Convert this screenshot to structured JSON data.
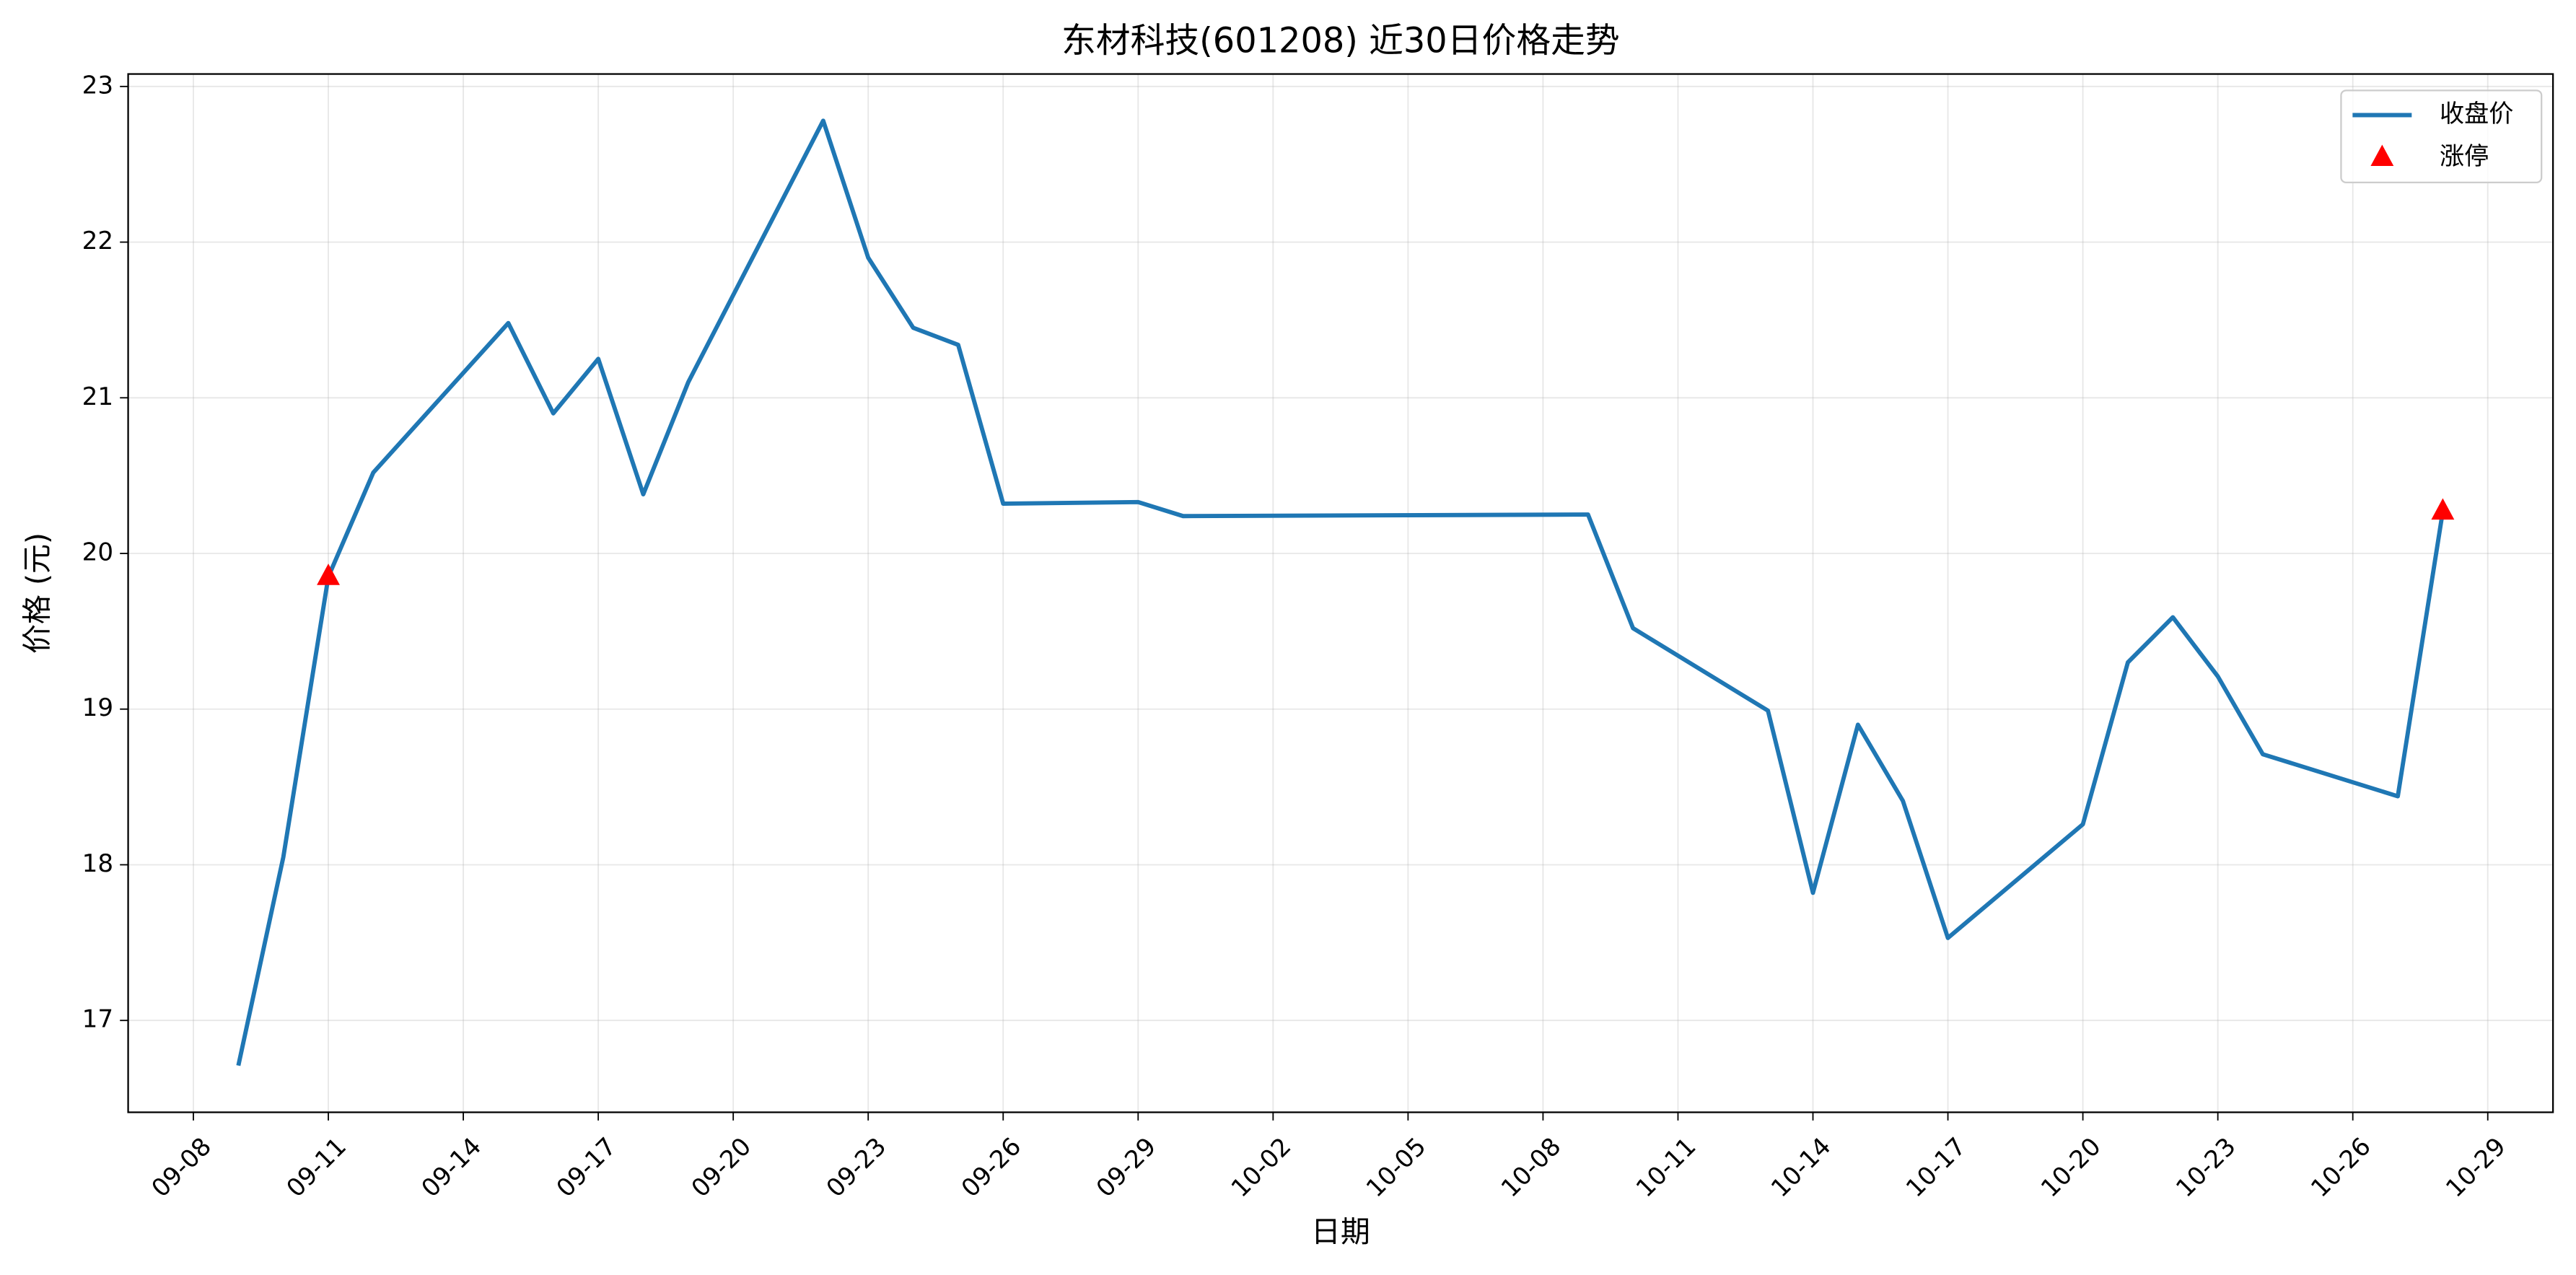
{
  "chart_data": {
    "type": "line",
    "title": "东材科技(601208) 近30日价格走势",
    "xlabel": "日期",
    "ylabel": "价格 (元)",
    "x": [
      "09-09",
      "09-10",
      "09-11",
      "09-12",
      "09-15",
      "09-16",
      "09-17",
      "09-18",
      "09-19",
      "09-22",
      "09-23",
      "09-24",
      "09-25",
      "09-26",
      "09-29",
      "09-30",
      "10-09",
      "10-10",
      "10-13",
      "10-14",
      "10-15",
      "10-16",
      "10-17",
      "10-20",
      "10-21",
      "10-22",
      "10-23",
      "10-24",
      "10-27",
      "10-28"
    ],
    "series": [
      {
        "name": "收盘价",
        "color": "#1f77b4",
        "values": [
          16.71,
          18.05,
          19.85,
          20.52,
          21.48,
          20.9,
          21.25,
          20.38,
          21.1,
          22.78,
          21.9,
          21.45,
          21.34,
          20.32,
          20.33,
          20.24,
          20.25,
          19.52,
          18.99,
          17.82,
          18.9,
          18.41,
          17.53,
          18.26,
          19.3,
          19.59,
          19.21,
          18.71,
          18.44,
          20.27
        ]
      },
      {
        "name": "涨停",
        "color": "#ff0000",
        "marker": "triangle",
        "x": [
          "09-11",
          "10-28"
        ],
        "values": [
          19.85,
          20.27
        ]
      }
    ],
    "ylim": [
      16.41,
      23.08
    ],
    "yticks": [
      17,
      18,
      19,
      20,
      21,
      22,
      23
    ],
    "xticks": [
      "09-08",
      "09-11",
      "09-14",
      "09-17",
      "09-20",
      "09-23",
      "09-26",
      "09-29",
      "10-02",
      "10-05",
      "10-08",
      "10-11",
      "10-14",
      "10-17",
      "10-20",
      "10-23",
      "10-26",
      "10-29"
    ],
    "grid": true,
    "legend": "upper right"
  }
}
